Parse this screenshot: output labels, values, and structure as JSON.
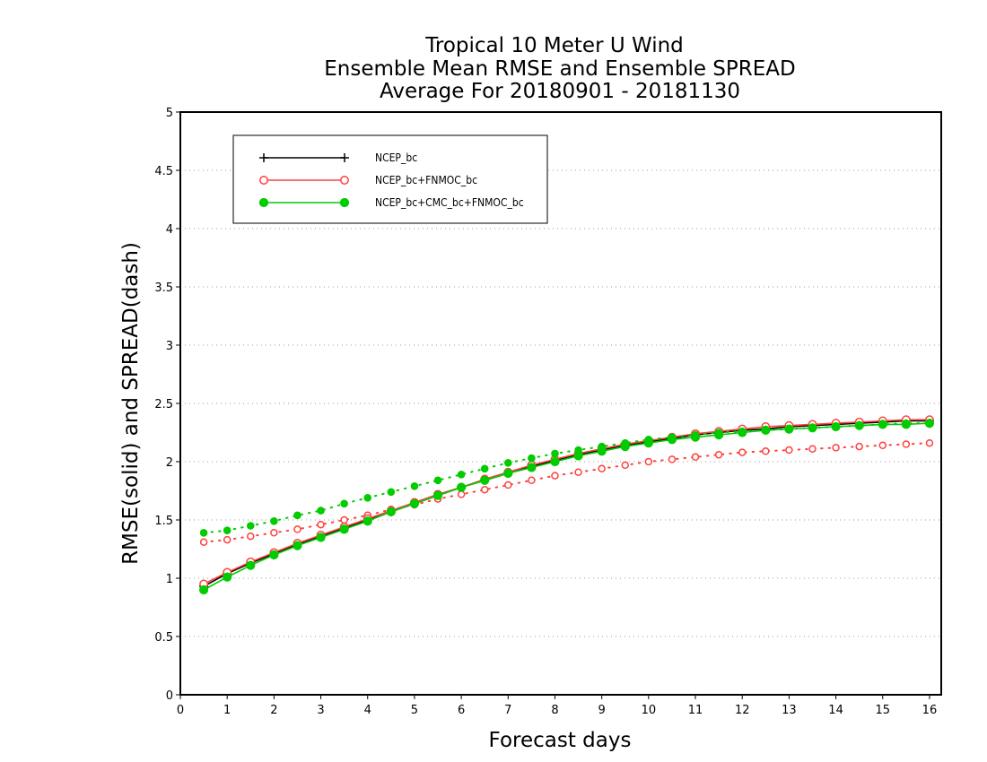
{
  "chart_data": {
    "type": "line",
    "title": [
      "Tropical 10 Meter U Wind",
      "Ensemble Mean RMSE and Ensemble SPREAD",
      "Average For 20180901 - 20181130"
    ],
    "xlabel": "Forecast days",
    "ylabel": "RMSE(solid) and SPREAD(dash)",
    "xlim": [
      0,
      16.25
    ],
    "ylim": [
      0,
      5
    ],
    "xticks": [
      "0",
      "1",
      "2",
      "3",
      "4",
      "5",
      "6",
      "7",
      "8",
      "9",
      "10",
      "11",
      "12",
      "13",
      "14",
      "15",
      "16"
    ],
    "yticks": [
      "0",
      "0.5",
      "1",
      "1.5",
      "2",
      "2.5",
      "3",
      "3.5",
      "4",
      "4.5",
      "5"
    ],
    "grid": "horizontal dotted",
    "legend_position": "top-left",
    "x": [
      0.5,
      1,
      1.5,
      2,
      2.5,
      3,
      3.5,
      4,
      4.5,
      5,
      5.5,
      6,
      6.5,
      7,
      7.5,
      8,
      8.5,
      9,
      9.5,
      10,
      10.5,
      11,
      11.5,
      12,
      12.5,
      13,
      13.5,
      14,
      14.5,
      15,
      15.5,
      16
    ],
    "series": [
      {
        "name": "NCEP_bc",
        "color": "#000000",
        "marker": "plus",
        "rmse": [
          0.93,
          1.04,
          1.13,
          1.21,
          1.29,
          1.36,
          1.43,
          1.5,
          1.57,
          1.64,
          1.71,
          1.78,
          1.84,
          1.9,
          1.96,
          2.01,
          2.06,
          2.1,
          2.14,
          2.17,
          2.2,
          2.23,
          2.25,
          2.27,
          2.28,
          2.3,
          2.31,
          2.32,
          2.33,
          2.34,
          2.35,
          2.35
        ],
        "spread": null
      },
      {
        "name": "NCEP_bc+FNMOC_bc",
        "color": "#ff4040",
        "marker": "open-circle",
        "rmse": [
          0.95,
          1.05,
          1.14,
          1.22,
          1.3,
          1.37,
          1.44,
          1.51,
          1.58,
          1.65,
          1.72,
          1.78,
          1.85,
          1.91,
          1.97,
          2.02,
          2.07,
          2.11,
          2.15,
          2.18,
          2.21,
          2.24,
          2.26,
          2.28,
          2.3,
          2.31,
          2.32,
          2.33,
          2.34,
          2.35,
          2.36,
          2.36
        ],
        "spread": [
          1.31,
          1.33,
          1.36,
          1.39,
          1.42,
          1.46,
          1.5,
          1.54,
          1.59,
          1.63,
          1.68,
          1.72,
          1.76,
          1.8,
          1.84,
          1.88,
          1.91,
          1.94,
          1.97,
          2.0,
          2.02,
          2.04,
          2.06,
          2.08,
          2.09,
          2.1,
          2.11,
          2.12,
          2.13,
          2.14,
          2.15,
          2.16
        ]
      },
      {
        "name": "NCEP_bc+CMC_bc+FNMOC_bc",
        "color": "#00cc00",
        "marker": "filled-circle",
        "rmse": [
          0.9,
          1.01,
          1.11,
          1.2,
          1.28,
          1.35,
          1.42,
          1.49,
          1.57,
          1.64,
          1.71,
          1.78,
          1.84,
          1.9,
          1.95,
          2.0,
          2.05,
          2.09,
          2.13,
          2.16,
          2.19,
          2.21,
          2.23,
          2.25,
          2.27,
          2.28,
          2.29,
          2.3,
          2.31,
          2.32,
          2.32,
          2.33
        ],
        "spread": [
          1.39,
          1.41,
          1.45,
          1.49,
          1.54,
          1.58,
          1.64,
          1.69,
          1.74,
          1.79,
          1.84,
          1.89,
          1.94,
          1.99,
          2.03,
          2.07,
          2.1,
          2.13,
          2.16,
          2.19,
          2.21,
          2.23,
          2.25,
          2.26,
          2.27,
          2.28,
          2.29,
          2.3,
          2.31,
          2.32,
          2.33,
          2.33
        ]
      }
    ]
  }
}
